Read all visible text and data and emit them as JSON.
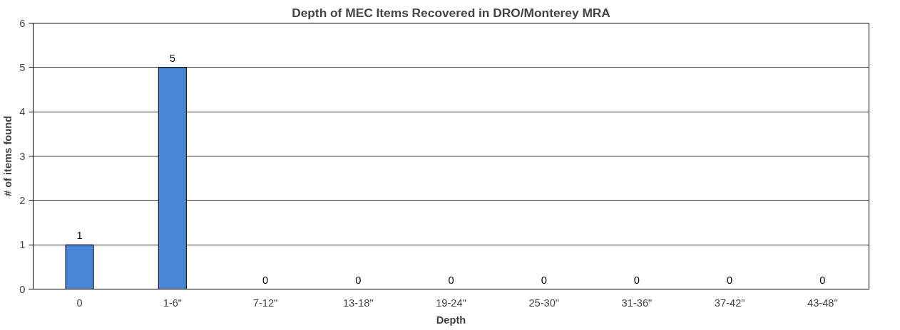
{
  "chart_data": {
    "type": "bar",
    "title": "Depth of MEC Items Recovered in DRO/Monterey MRA",
    "xlabel": "Depth",
    "ylabel": "# of items found",
    "categories": [
      "0",
      "1-6\"",
      "7-12\"",
      "13-18\"",
      "19-24\"",
      "25-30\"",
      "31-36\"",
      "37-42\"",
      "43-48\""
    ],
    "values": [
      1,
      5,
      0,
      0,
      0,
      0,
      0,
      0,
      0
    ],
    "color": "#4a86d8",
    "ylim": [
      0,
      6
    ],
    "yticks": [
      0,
      1,
      2,
      3,
      4,
      5,
      6
    ],
    "grid": "y",
    "data_labels": true
  }
}
